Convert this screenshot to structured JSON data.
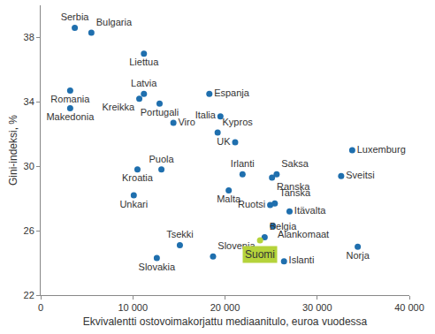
{
  "chart_data": {
    "type": "scatter",
    "x_label": "Ekvivalentti ostovoimakorjattu mediaanitulo, euroa vuodessa",
    "y_label": "Gini-indeksi, %",
    "xlim": [
      0,
      40000
    ],
    "xticks": [
      0,
      {
        "value": 10000,
        "label": "10 000"
      },
      {
        "value": 20000,
        "label": "20 000"
      },
      {
        "value": 30000,
        "label": "30 000"
      },
      {
        "value": 40000,
        "label": "40 000"
      }
    ],
    "ylim": [
      22,
      40
    ],
    "yticks": [
      22,
      26,
      30,
      34,
      38
    ],
    "grid": false,
    "marker": "circle",
    "series": [
      {
        "color": "#1f6fae",
        "labels": [
          "Serbia",
          "Bulgaria",
          "Liettua",
          "Romania",
          "Latvia",
          "Kreikka",
          "Portugali",
          "Makedonia",
          "Viro",
          "Espanja",
          "Italia",
          "Kypros",
          "UK",
          "Luxemburg",
          "Sveitsi",
          "Puola",
          "Kroatia",
          "Unkari",
          "Irlanti",
          "Saksa",
          "Ranska",
          "Malta",
          "Ruotsi",
          "Tanska",
          "Itävalta",
          "Alankomaat",
          "Belgia",
          "Tsekki",
          "Slovenia",
          "Slovakia",
          "Islanti",
          "Norja"
        ],
        "x": [
          3700,
          5500,
          11200,
          3200,
          11200,
          10700,
          12900,
          3200,
          14400,
          18300,
          19500,
          19200,
          21100,
          33800,
          32600,
          13100,
          10500,
          10100,
          21900,
          25600,
          25100,
          20400,
          24900,
          25400,
          27000,
          25200,
          24300,
          15100,
          18700,
          12600,
          26400,
          34400
        ],
        "y": [
          38.6,
          38.3,
          37.0,
          34.7,
          34.5,
          34.2,
          33.9,
          33.6,
          32.7,
          34.5,
          33.1,
          32.1,
          31.5,
          31.0,
          29.4,
          29.8,
          29.8,
          28.2,
          29.5,
          29.5,
          29.3,
          28.5,
          27.6,
          27.7,
          27.2,
          26.3,
          25.6,
          25.1,
          24.4,
          24.3,
          24.1,
          25.0
        ]
      },
      {
        "color": "#b5d33b",
        "labels": [
          "Suomi"
        ],
        "x": [
          23800
        ],
        "y": [
          25.4
        ]
      }
    ]
  }
}
